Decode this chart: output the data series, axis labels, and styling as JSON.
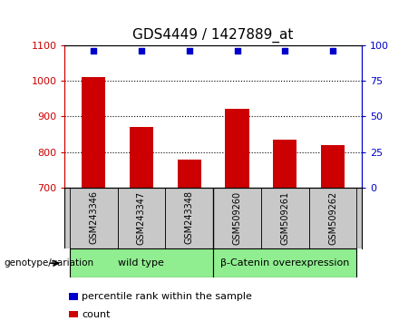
{
  "title": "GDS4449 / 1427889_at",
  "categories": [
    "GSM243346",
    "GSM243347",
    "GSM243348",
    "GSM509260",
    "GSM509261",
    "GSM509262"
  ],
  "bar_values": [
    1010,
    870,
    780,
    920,
    835,
    820
  ],
  "percentile_values": [
    100,
    100,
    100,
    100,
    100,
    100
  ],
  "bar_color": "#cc0000",
  "dot_color": "#0000cc",
  "ylim_left": [
    700,
    1100
  ],
  "ylim_right": [
    0,
    100
  ],
  "yticks_left": [
    700,
    800,
    900,
    1000,
    1100
  ],
  "yticks_right": [
    0,
    25,
    50,
    75,
    100
  ],
  "grid_values": [
    800,
    900,
    1000
  ],
  "group_labels": [
    "wild type",
    "β-Catenin overexpression"
  ],
  "group_color": "#90ee90",
  "cat_bg_color": "#c8c8c8",
  "genotype_label": "genotype/variation",
  "legend_items": [
    {
      "color": "#cc0000",
      "label": "count"
    },
    {
      "color": "#0000cc",
      "label": "percentile rank within the sample"
    }
  ],
  "bar_width": 0.5,
  "title_fontsize": 11,
  "tick_fontsize": 8,
  "cat_fontsize": 7,
  "grp_fontsize": 8,
  "legend_fontsize": 8
}
